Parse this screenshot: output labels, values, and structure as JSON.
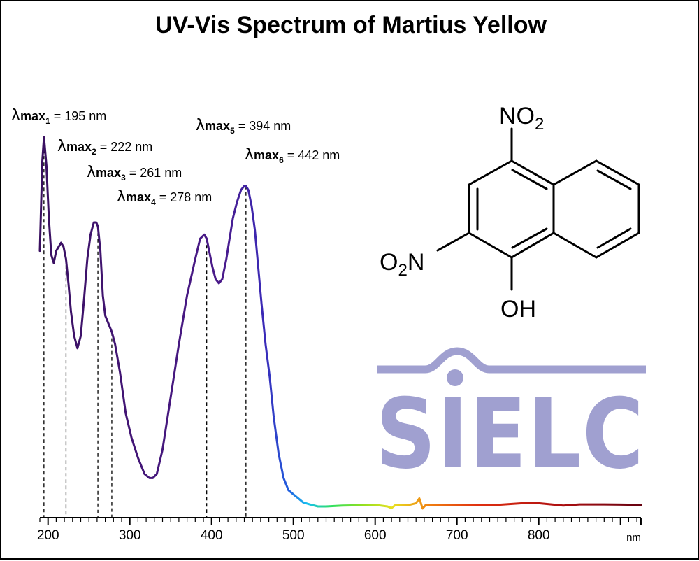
{
  "chart_data": {
    "type": "line",
    "title": "UV-Vis Spectrum of Martius Yellow",
    "xlabel": "nm",
    "ylabel": "",
    "xlim": [
      190,
      925
    ],
    "ylim": [
      0,
      1.0
    ],
    "xticks": [
      200,
      300,
      400,
      500,
      600,
      700,
      800
    ],
    "grid": false,
    "series": [
      {
        "x": [
          190,
          193,
          195,
          198,
          201,
          204,
          207,
          210,
          213,
          216,
          219,
          222,
          225,
          228,
          232,
          236,
          240,
          244,
          248,
          252,
          256,
          259,
          261,
          264,
          267,
          270,
          274,
          278,
          282,
          288,
          295,
          302,
          310,
          318,
          324,
          328,
          333,
          340,
          350,
          360,
          370,
          380,
          386,
          391,
          394,
          397,
          401,
          405,
          409,
          413,
          418,
          422,
          426,
          431,
          436,
          440,
          442,
          445,
          449,
          453,
          457,
          461,
          466,
          471,
          476,
          482,
          488,
          494,
          500,
          506,
          512,
          520,
          530,
          540,
          560,
          580,
          600,
          615,
          620,
          625,
          640,
          650,
          654,
          658,
          662,
          670,
          700,
          750,
          780,
          800,
          830,
          850,
          880,
          925
        ],
        "y": [
          0.63,
          0.85,
          0.91,
          0.84,
          0.71,
          0.62,
          0.6,
          0.63,
          0.64,
          0.65,
          0.64,
          0.61,
          0.55,
          0.48,
          0.42,
          0.39,
          0.42,
          0.51,
          0.61,
          0.67,
          0.7,
          0.7,
          0.69,
          0.63,
          0.52,
          0.47,
          0.45,
          0.43,
          0.4,
          0.33,
          0.23,
          0.17,
          0.12,
          0.08,
          0.07,
          0.07,
          0.08,
          0.14,
          0.27,
          0.4,
          0.52,
          0.61,
          0.66,
          0.67,
          0.66,
          0.63,
          0.59,
          0.56,
          0.55,
          0.56,
          0.61,
          0.66,
          0.71,
          0.75,
          0.78,
          0.79,
          0.79,
          0.78,
          0.74,
          0.68,
          0.59,
          0.5,
          0.4,
          0.32,
          0.22,
          0.13,
          0.07,
          0.04,
          0.03,
          0.02,
          0.01,
          0.005,
          0.0,
          0.0,
          0.002,
          0.003,
          0.004,
          0.0,
          -0.004,
          0.004,
          0.003,
          0.008,
          0.02,
          -0.005,
          0.004,
          0.004,
          0.004,
          0.004,
          0.008,
          0.008,
          0.002,
          0.005,
          0.005,
          0.004
        ]
      }
    ],
    "annotations": [
      {
        "n": "1",
        "value": 195,
        "text": " = 195 nm"
      },
      {
        "n": "2",
        "value": 222,
        "text": " = 222 nm"
      },
      {
        "n": "3",
        "value": 261,
        "text": " = 261 nm"
      },
      {
        "n": "4",
        "value": 278,
        "text": " = 278 nm"
      },
      {
        "n": "5",
        "value": 394,
        "text": " = 394 nm"
      },
      {
        "n": "6",
        "value": 442,
        "text": " = 442 nm"
      }
    ]
  },
  "labels": {
    "lambda": "λ",
    "max": "max"
  },
  "molecule": {
    "top_group": "NO",
    "top_group_sub": "2",
    "left_group_prefix": "O",
    "left_group_sub": "2",
    "left_group_suffix": "N",
    "bottom_group": "OH"
  },
  "logo": {
    "text": "SIELC",
    "color": "#a0a0d0"
  },
  "colors": {
    "uv": "#3a1060",
    "violet": "#4a1a8a",
    "blue": "#2050d8",
    "cyan": "#18c0f0",
    "green": "#30e030",
    "yellow": "#e8e020",
    "orange": "#f08010",
    "red": "#d02010",
    "dark_red": "#600010"
  }
}
